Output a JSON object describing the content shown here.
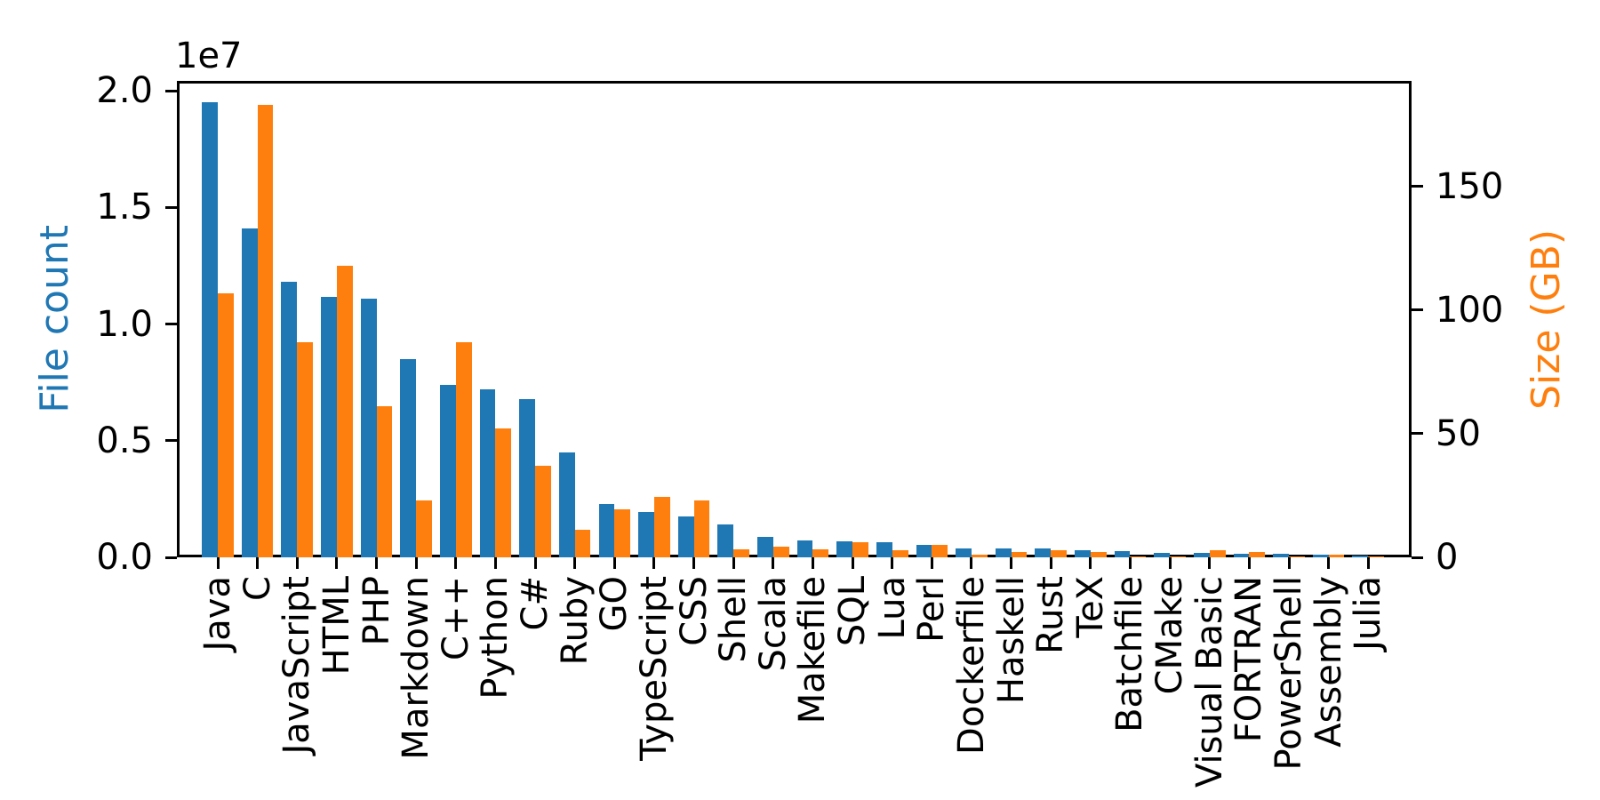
{
  "axes": {
    "offset_label": "1e7",
    "left": {
      "label": "File count",
      "color": "#1f77b4",
      "tick_labels": [
        "0.0",
        "0.5",
        "1.0",
        "1.5",
        "2.0"
      ],
      "tick_values": [
        0,
        5000000,
        10000000,
        15000000,
        20000000
      ],
      "max": 20420000
    },
    "right": {
      "label": "Size (GB)",
      "color": "#ff7f0e",
      "tick_labels": [
        "0",
        "50",
        "100",
        "150"
      ],
      "tick_values": [
        0,
        50,
        100,
        150
      ],
      "max": 192.8
    }
  },
  "chart_data": {
    "type": "bar",
    "title": "",
    "xlabel": "",
    "ylabel_left": "File count",
    "ylabel_right": "Size (GB)",
    "ylim_left": [
      0,
      20420000
    ],
    "ylim_right": [
      0,
      192.8
    ],
    "left_axis_offset_text": "1e7",
    "grid": false,
    "legend": "none",
    "categories": [
      "Java",
      "C",
      "JavaScript",
      "HTML",
      "PHP",
      "Markdown",
      "C++",
      "Python",
      "C#",
      "Ruby",
      "GO",
      "TypeScript",
      "CSS",
      "Shell",
      "Scala",
      "Makefile",
      "SQL",
      "Lua",
      "Perl",
      "Dockerfile",
      "Haskell",
      "Rust",
      "TeX",
      "Batchfile",
      "CMake",
      "Visual Basic",
      "FORTRAN",
      "PowerShell",
      "Assembly",
      "Julia"
    ],
    "series": [
      {
        "name": "File count",
        "axis": "left",
        "color": "#1f77b4",
        "values": [
          19500000,
          14100000,
          11800000,
          11150000,
          11100000,
          8500000,
          7400000,
          7200000,
          6800000,
          4500000,
          2270000,
          1950000,
          1760000,
          1400000,
          870000,
          710000,
          700000,
          650000,
          530000,
          390000,
          370000,
          370000,
          300000,
          280000,
          190000,
          180000,
          160000,
          160000,
          100000,
          60000
        ]
      },
      {
        "name": "Size (GB)",
        "axis": "right",
        "color": "#ff7f0e",
        "values": [
          107,
          183,
          87,
          118,
          61,
          23,
          87,
          52,
          37,
          11,
          19.3,
          24.5,
          23,
          3.2,
          4.2,
          3.3,
          6.0,
          2.9,
          5.0,
          1.1,
          2.0,
          2.7,
          2.3,
          0.3,
          0.3,
          2.8,
          2.0,
          0.5,
          1.2,
          0.2
        ]
      }
    ]
  }
}
